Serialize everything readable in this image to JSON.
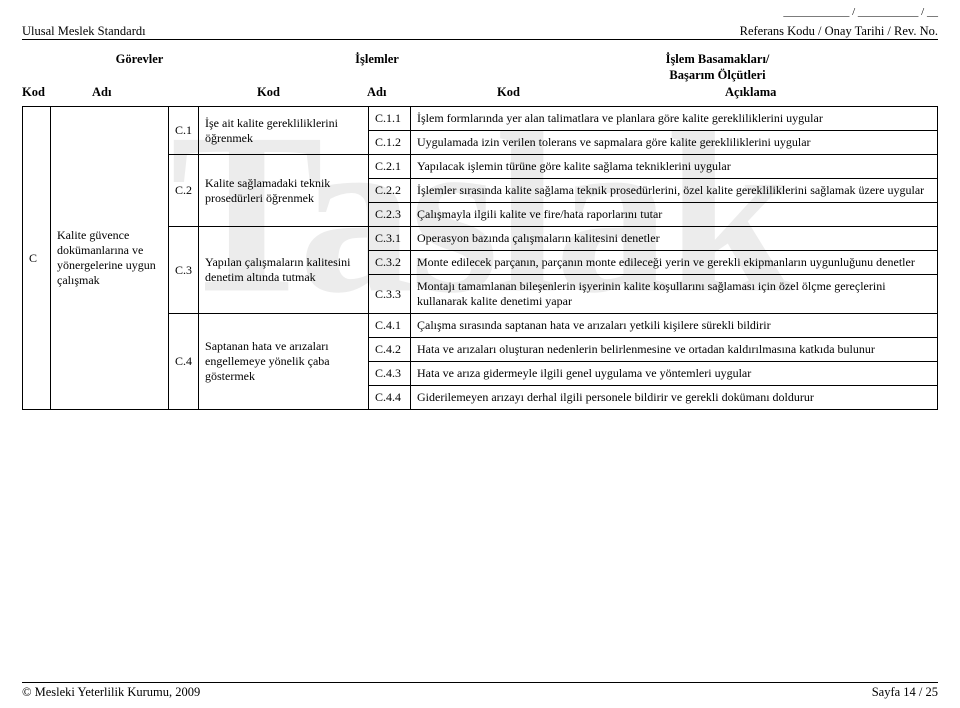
{
  "header": {
    "ref_dashes": "____________ / ___________ / __",
    "left": "Ulusal Meslek Standardı",
    "right": "Referans Kodu / Onay Tarihi / Rev. No."
  },
  "groups": {
    "g1": "Görevler",
    "g2": "İşlemler",
    "g3_line1": "İşlem Basamakları/",
    "g3_line2": "Başarım Ölçütleri"
  },
  "cols": {
    "kod": "Kod",
    "adi": "Adı",
    "aciklama": "Açıklama"
  },
  "watermark": "Taslak",
  "lvl1": {
    "code": "C",
    "name": "Kalite güvence dokümanlarına ve yönergelerine uygun çalışmak"
  },
  "lvl2": [
    {
      "code": "C.1",
      "name": "İşe ait kalite gerekliliklerini öğrenmek",
      "rows": [
        {
          "code": "C.1.1",
          "desc": "İşlem formlarında yer alan talimatlara ve planlara göre kalite gerekliliklerini uygular"
        },
        {
          "code": "C.1.2",
          "desc": "Uygulamada izin verilen tolerans ve sapmalara göre kalite gerekliliklerini uygular"
        }
      ]
    },
    {
      "code": "C.2",
      "name": "Kalite sağlamadaki teknik prosedürleri öğrenmek",
      "rows": [
        {
          "code": "C.2.1",
          "desc": "Yapılacak işlemin türüne göre kalite sağlama tekniklerini uygular"
        },
        {
          "code": "C.2.2",
          "desc": "İşlemler sırasında kalite sağlama teknik prosedürlerini, özel kalite gerekliliklerini sağlamak üzere uygular"
        },
        {
          "code": "C.2.3",
          "desc": "Çalışmayla ilgili kalite ve fire/hata raporlarını tutar"
        }
      ]
    },
    {
      "code": "C.3",
      "name": "Yapılan çalışmaların kalitesini denetim altında tutmak",
      "rows": [
        {
          "code": "C.3.1",
          "desc": "Operasyon bazında çalışmaların kalitesini denetler"
        },
        {
          "code": "C.3.2",
          "desc": "Monte edilecek parçanın, parçanın monte edileceği yerin ve gerekli ekipmanların uygunluğunu denetler"
        },
        {
          "code": "C.3.3",
          "desc": "Montajı tamamlanan bileşenlerin işyerinin kalite koşullarını sağlaması için özel ölçme gereçlerini kullanarak kalite denetimi yapar"
        }
      ]
    },
    {
      "code": "C.4",
      "name": "Saptanan hata ve arızaları engellemeye yönelik çaba göstermek",
      "rows": [
        {
          "code": "C.4.1",
          "desc": "Çalışma sırasında saptanan hata ve arızaları yetkili kişilere sürekli bildirir"
        },
        {
          "code": "C.4.2",
          "desc": "Hata ve arızaları oluşturan nedenlerin belirlenmesine ve ortadan kaldırılmasına katkıda bulunur"
        },
        {
          "code": "C.4.3",
          "desc": "Hata ve arıza gidermeyle ilgili genel uygulama ve yöntemleri uygular"
        },
        {
          "code": "C.4.4",
          "desc": "Giderilemeyen arızayı derhal ilgili personele bildirir ve gerekli dokümanı doldurur"
        }
      ]
    }
  ],
  "footer": {
    "left": "© Mesleki Yeterlilik Kurumu, 2009",
    "right": "Sayfa 14 / 25"
  }
}
